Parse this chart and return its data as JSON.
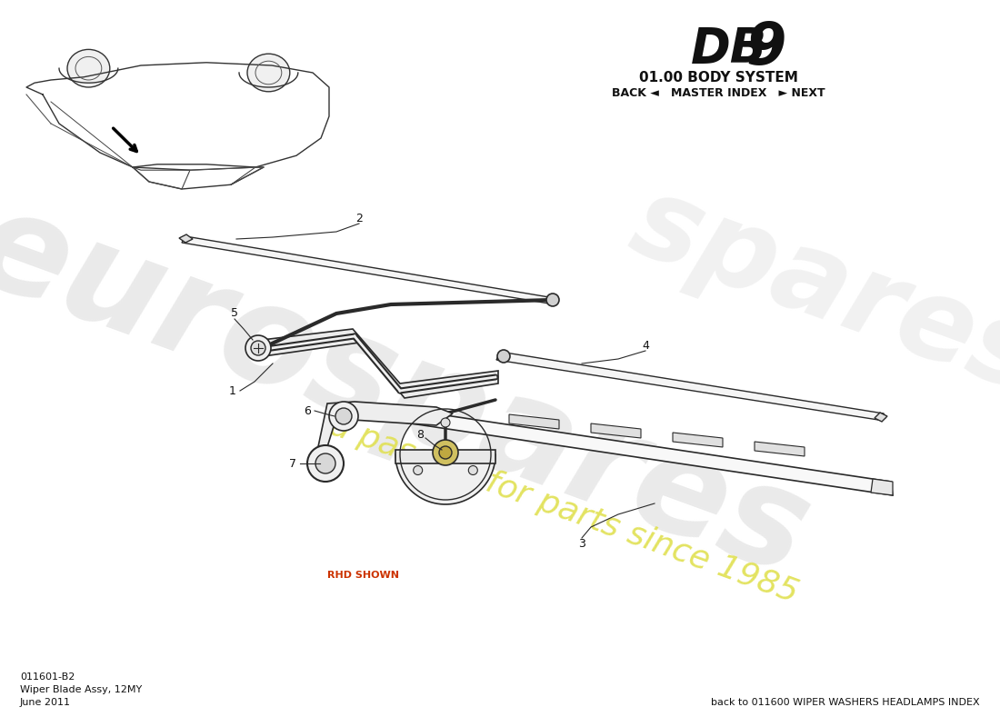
{
  "title_system": "01.00 BODY SYSTEM",
  "nav_text": "BACK ◄   MASTER INDEX   ► NEXT",
  "part_number": "011601-B2",
  "part_name": "Wiper Blade Assy, 12MY",
  "date": "June 2011",
  "back_link": "back to 011600 WIPER WASHERS HEADLAMPS INDEX",
  "rhd_shown": "RHD SHOWN",
  "bg_color": "#ffffff",
  "line_color": "#2a2a2a",
  "wm_gray": "#cccccc",
  "wm_yellow": "#e0e050"
}
